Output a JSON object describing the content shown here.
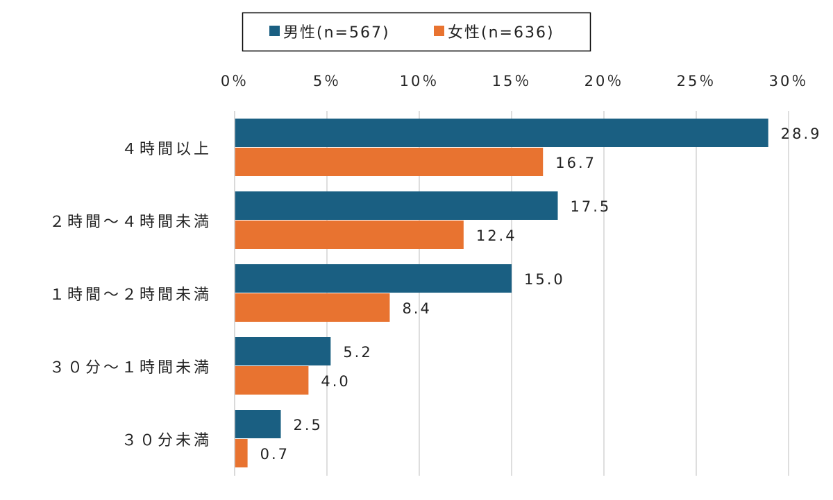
{
  "chart_data": {
    "type": "bar",
    "orientation": "horizontal",
    "title": "",
    "xlabel": "",
    "ylabel": "",
    "categories": [
      "4時間以上",
      "2時間～4時間未満",
      "1時間～2時間未満",
      "30分～1時間未満",
      "30分未満"
    ],
    "category_labels": [
      "４時間以上",
      "２時間～４時間未満",
      "１時間～２時間未満",
      "３０分～１時間未満",
      "３０分未満"
    ],
    "series": [
      {
        "name": "男性(n=567)",
        "color": "#1a5f82",
        "values": [
          28.9,
          17.5,
          15.0,
          5.2,
          2.5
        ],
        "labels": [
          "28.9",
          "17.5",
          "15.0",
          "5.2",
          "2.5"
        ]
      },
      {
        "name": "女性(n=636)",
        "color": "#e87330",
        "values": [
          16.7,
          12.4,
          8.4,
          4.0,
          0.7
        ],
        "labels": [
          "16.7",
          "12.4",
          "8.4",
          "4.0",
          "0.7"
        ]
      }
    ],
    "xlim": [
      0,
      30
    ],
    "xticks": [
      0,
      5,
      10,
      15,
      20,
      25,
      30
    ],
    "xtick_labels": [
      "0％",
      "5％",
      "10％",
      "15％",
      "20％",
      "25％",
      "30％"
    ],
    "x_axis_position": "top",
    "grid": true,
    "legend_position": "top"
  }
}
